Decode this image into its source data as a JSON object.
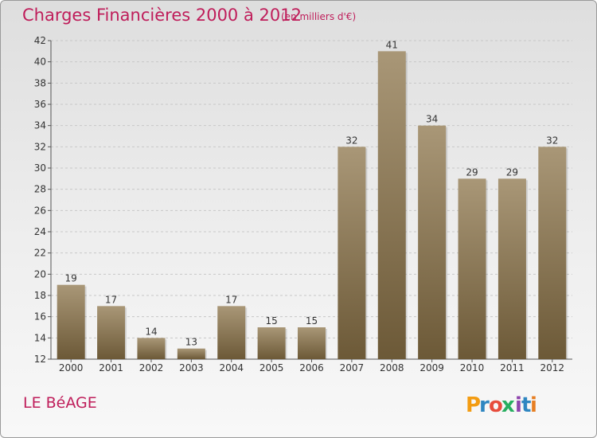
{
  "header": {
    "title": "Charges Financières 2000 à 2012",
    "subtitle": "(en milliers d'€)"
  },
  "footer": {
    "commune": "LE BéAGE",
    "brand": "Proxiti"
  },
  "colors": {
    "title": "#bf1d5a",
    "bar_top": "#a99777",
    "bar_bottom": "#6c5937",
    "brand_letters": [
      "#f39c12",
      "#2e86c1",
      "#e74c3c",
      "#27ae60",
      "#8e44ad",
      "#2e86c1",
      "#e67e22"
    ]
  },
  "chart_data": {
    "type": "bar",
    "categories": [
      "2000",
      "2001",
      "2002",
      "2003",
      "2004",
      "2005",
      "2006",
      "2007",
      "2008",
      "2009",
      "2010",
      "2011",
      "2012"
    ],
    "values": [
      19,
      17,
      14,
      13,
      17,
      15,
      15,
      32,
      41,
      34,
      29,
      29,
      32
    ],
    "data_labels": [
      "19",
      "17",
      "14",
      "13",
      "17",
      "15",
      "15",
      "32",
      "41",
      "34",
      "29",
      "29",
      "32"
    ],
    "ylim": [
      12,
      42
    ],
    "yticks": [
      12,
      14,
      16,
      18,
      20,
      22,
      24,
      26,
      28,
      30,
      32,
      34,
      36,
      38,
      40,
      42
    ],
    "grid": true,
    "legend": "none"
  }
}
